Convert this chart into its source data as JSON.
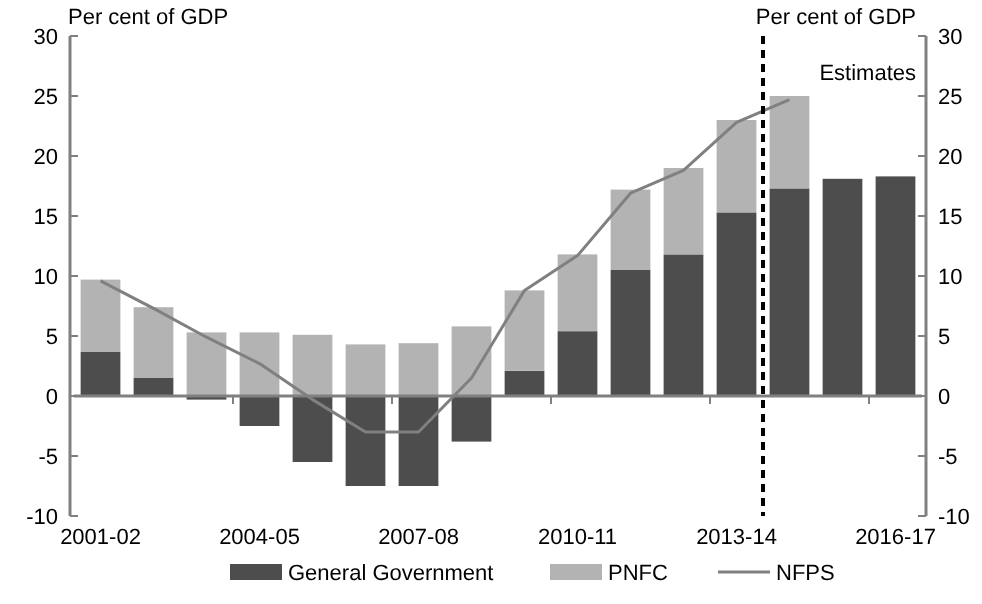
{
  "chart_data": {
    "type": "bar",
    "stacked": true,
    "ylabel": "Per cent of GDP",
    "y2label": "Per cent of GDP",
    "categories": [
      "2001-02",
      null,
      null,
      "2004-05",
      null,
      null,
      "2007-08",
      null,
      null,
      "2010-11",
      null,
      null,
      "2013-14",
      null,
      null,
      "2016-17"
    ],
    "series": [
      {
        "name": "General Government",
        "color": "#4d4d4d",
        "values": [
          3.7,
          1.5,
          -0.3,
          -2.5,
          -5.5,
          -7.5,
          -7.5,
          -3.8,
          2.1,
          5.4,
          10.5,
          11.8,
          15.3,
          17.3,
          18.1,
          18.3
        ]
      },
      {
        "name": "PNFC",
        "color": "#b3b3b3",
        "values": [
          6.0,
          5.9,
          5.3,
          5.3,
          5.1,
          4.3,
          4.4,
          5.8,
          6.7,
          6.4,
          6.7,
          7.2,
          7.7,
          7.7,
          null,
          null
        ]
      },
      {
        "name": "NFPS",
        "type": "line",
        "color": "#808080",
        "values": [
          9.6,
          7.3,
          4.9,
          2.7,
          -0.3,
          -3.0,
          -3.0,
          1.5,
          8.8,
          11.7,
          16.9,
          18.8,
          22.8,
          24.7,
          null,
          null
        ]
      }
    ],
    "ylim": [
      -10,
      30
    ],
    "yticks": [
      -10,
      -5,
      0,
      5,
      10,
      15,
      20,
      25,
      30
    ],
    "y2lim": [
      -10,
      30
    ],
    "y2ticks": [
      -10,
      -5,
      0,
      5,
      10,
      15,
      20,
      25,
      30
    ],
    "annotations": [
      "Estimates"
    ],
    "legend": "bottom",
    "grid": false
  }
}
